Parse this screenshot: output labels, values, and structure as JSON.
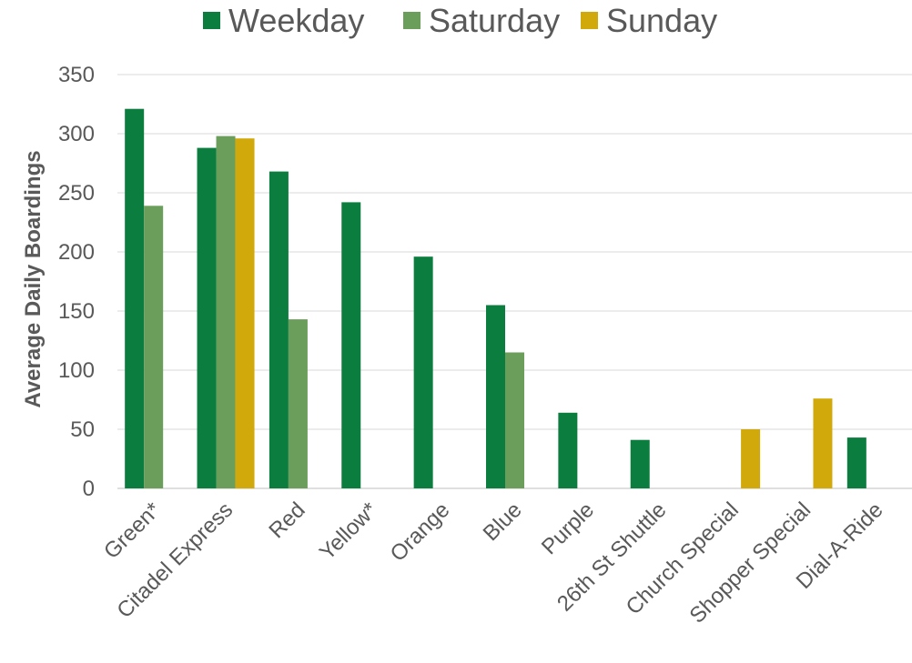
{
  "chart_data": {
    "type": "bar",
    "title": "",
    "xlabel": "",
    "ylabel": "Average Daily Boardings",
    "ylim": [
      0,
      350
    ],
    "yticks": [
      0,
      50,
      100,
      150,
      200,
      250,
      300,
      350
    ],
    "grid": true,
    "legend_position": "top",
    "categories": [
      "Green*",
      "Citadel Express",
      "Red",
      "Yellow*",
      "Orange",
      "Blue",
      "Purple",
      "26th St Shuttle",
      "Church Special",
      "Shopper Special",
      "Dial-A-Ride"
    ],
    "series": [
      {
        "name": "Weekday",
        "color": "#0b7d3e",
        "values": [
          321,
          288,
          268,
          242,
          196,
          155,
          64,
          41,
          null,
          null,
          43
        ]
      },
      {
        "name": "Saturday",
        "color": "#6a9e5a",
        "values": [
          239,
          298,
          143,
          null,
          null,
          115,
          null,
          null,
          null,
          null,
          null
        ]
      },
      {
        "name": "Sunday",
        "color": "#d2a90a",
        "values": [
          null,
          296,
          null,
          null,
          null,
          null,
          null,
          null,
          50,
          76,
          null
        ]
      }
    ]
  }
}
